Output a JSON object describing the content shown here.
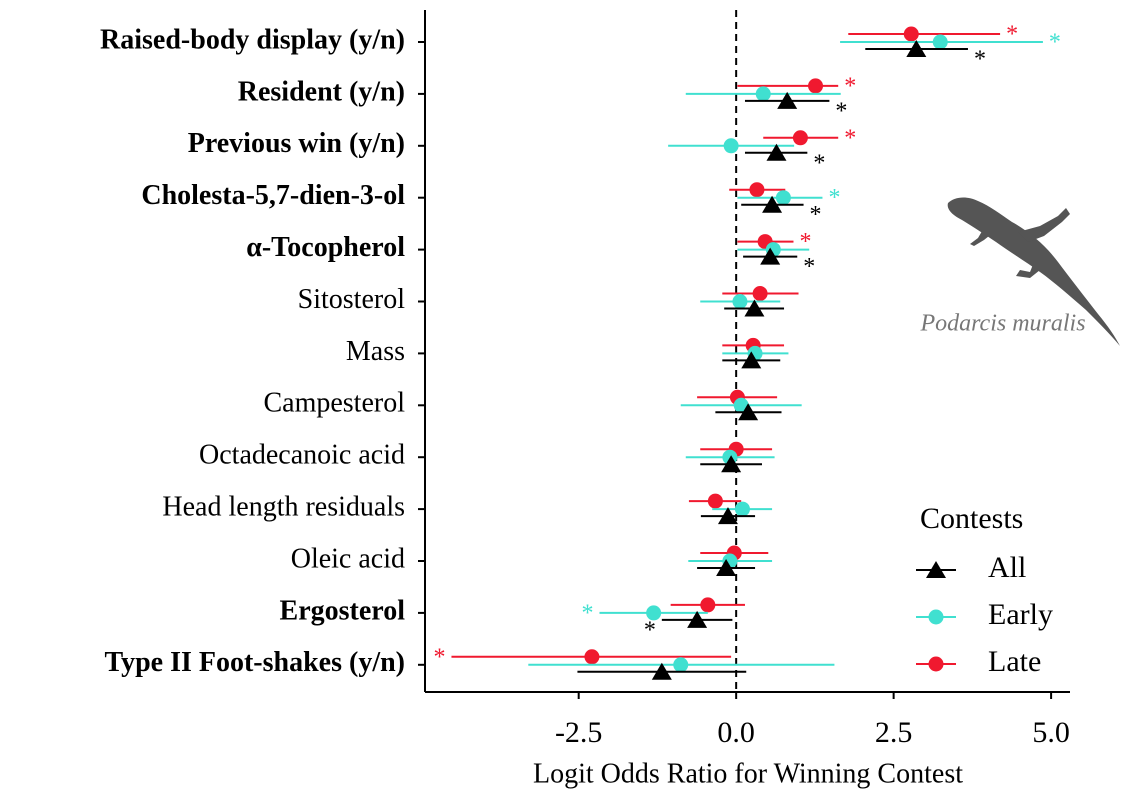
{
  "chart_data": {
    "type": "forest",
    "x_label": "Logit Odds Ratio for Winning Contest",
    "categories": [
      "Raised-body display (y/n)",
      "Resident (y/n)",
      "Previous win (y/n)",
      "Cholesta-5,7-dien-3-ol",
      "α-Tocopherol",
      "Sitosterol",
      "Mass",
      "Campesterol",
      "Octadecanoic acid",
      "Head length residuals",
      "Oleic acid",
      "Ergosterol",
      "Type II Foot-shakes (y/n)"
    ],
    "bold": [
      true,
      true,
      true,
      true,
      true,
      false,
      false,
      false,
      false,
      false,
      false,
      true,
      true
    ],
    "xlim": [
      -4.94,
      5.3
    ],
    "xticks": [
      -2.5,
      {
        "value": 0,
        "label": "0.0"
      },
      2.5,
      {
        "value": 5,
        "label": "5.0"
      }
    ],
    "reference_line": 0,
    "sig_marker": "*",
    "legend_title": "Contests",
    "legend_position": "bottom-right",
    "image_caption": "Podarcis muralis",
    "series": [
      {
        "name": "All",
        "color": "#000000",
        "marker": "triangle",
        "values": [
          2.86,
          0.81,
          0.64,
          0.57,
          0.54,
          0.29,
          0.24,
          0.19,
          -0.08,
          -0.13,
          -0.16,
          -0.62,
          -1.18
        ],
        "lower": [
          2.05,
          0.14,
          0.14,
          0.08,
          0.11,
          -0.19,
          -0.22,
          -0.33,
          -0.57,
          -0.56,
          -0.62,
          -1.18,
          -2.52
        ],
        "upper": [
          3.68,
          1.48,
          1.13,
          1.07,
          0.97,
          0.76,
          0.7,
          0.72,
          0.41,
          0.3,
          0.3,
          -0.06,
          0.16
        ],
        "significant": [
          true,
          true,
          true,
          true,
          true,
          false,
          false,
          false,
          false,
          false,
          false,
          true,
          false
        ]
      },
      {
        "name": "Early",
        "color": "#40e0d0",
        "marker": "circle",
        "values": [
          3.24,
          0.43,
          -0.08,
          0.75,
          0.59,
          0.06,
          0.3,
          0.08,
          -0.1,
          0.1,
          -0.1,
          -1.31,
          -0.88
        ],
        "lower": [
          1.65,
          -0.8,
          -1.08,
          0.02,
          0.02,
          -0.57,
          -0.22,
          -0.88,
          -0.8,
          -0.38,
          -0.76,
          -2.17,
          -3.3
        ],
        "upper": [
          4.87,
          1.66,
          0.92,
          1.37,
          1.16,
          0.7,
          0.83,
          1.04,
          0.61,
          0.57,
          0.57,
          -0.45,
          1.56
        ],
        "significant": [
          true,
          false,
          false,
          true,
          false,
          false,
          false,
          false,
          false,
          false,
          false,
          true,
          false
        ]
      },
      {
        "name": "Late",
        "color": "#f0192f",
        "marker": "circle",
        "values": [
          2.78,
          1.26,
          1.02,
          0.33,
          0.46,
          0.38,
          0.27,
          0.02,
          0.0,
          -0.33,
          -0.03,
          -0.45,
          -2.29
        ],
        "lower": [
          1.78,
          0.02,
          0.43,
          -0.11,
          0.02,
          -0.22,
          -0.22,
          -0.62,
          -0.57,
          -0.75,
          -0.57,
          -1.04,
          -4.52
        ],
        "upper": [
          4.19,
          1.62,
          1.62,
          0.78,
          0.91,
          0.99,
          0.76,
          0.65,
          0.57,
          0.08,
          0.51,
          0.14,
          -0.08
        ],
        "significant": [
          true,
          true,
          true,
          false,
          true,
          false,
          false,
          false,
          false,
          false,
          false,
          false,
          true
        ]
      }
    ]
  }
}
